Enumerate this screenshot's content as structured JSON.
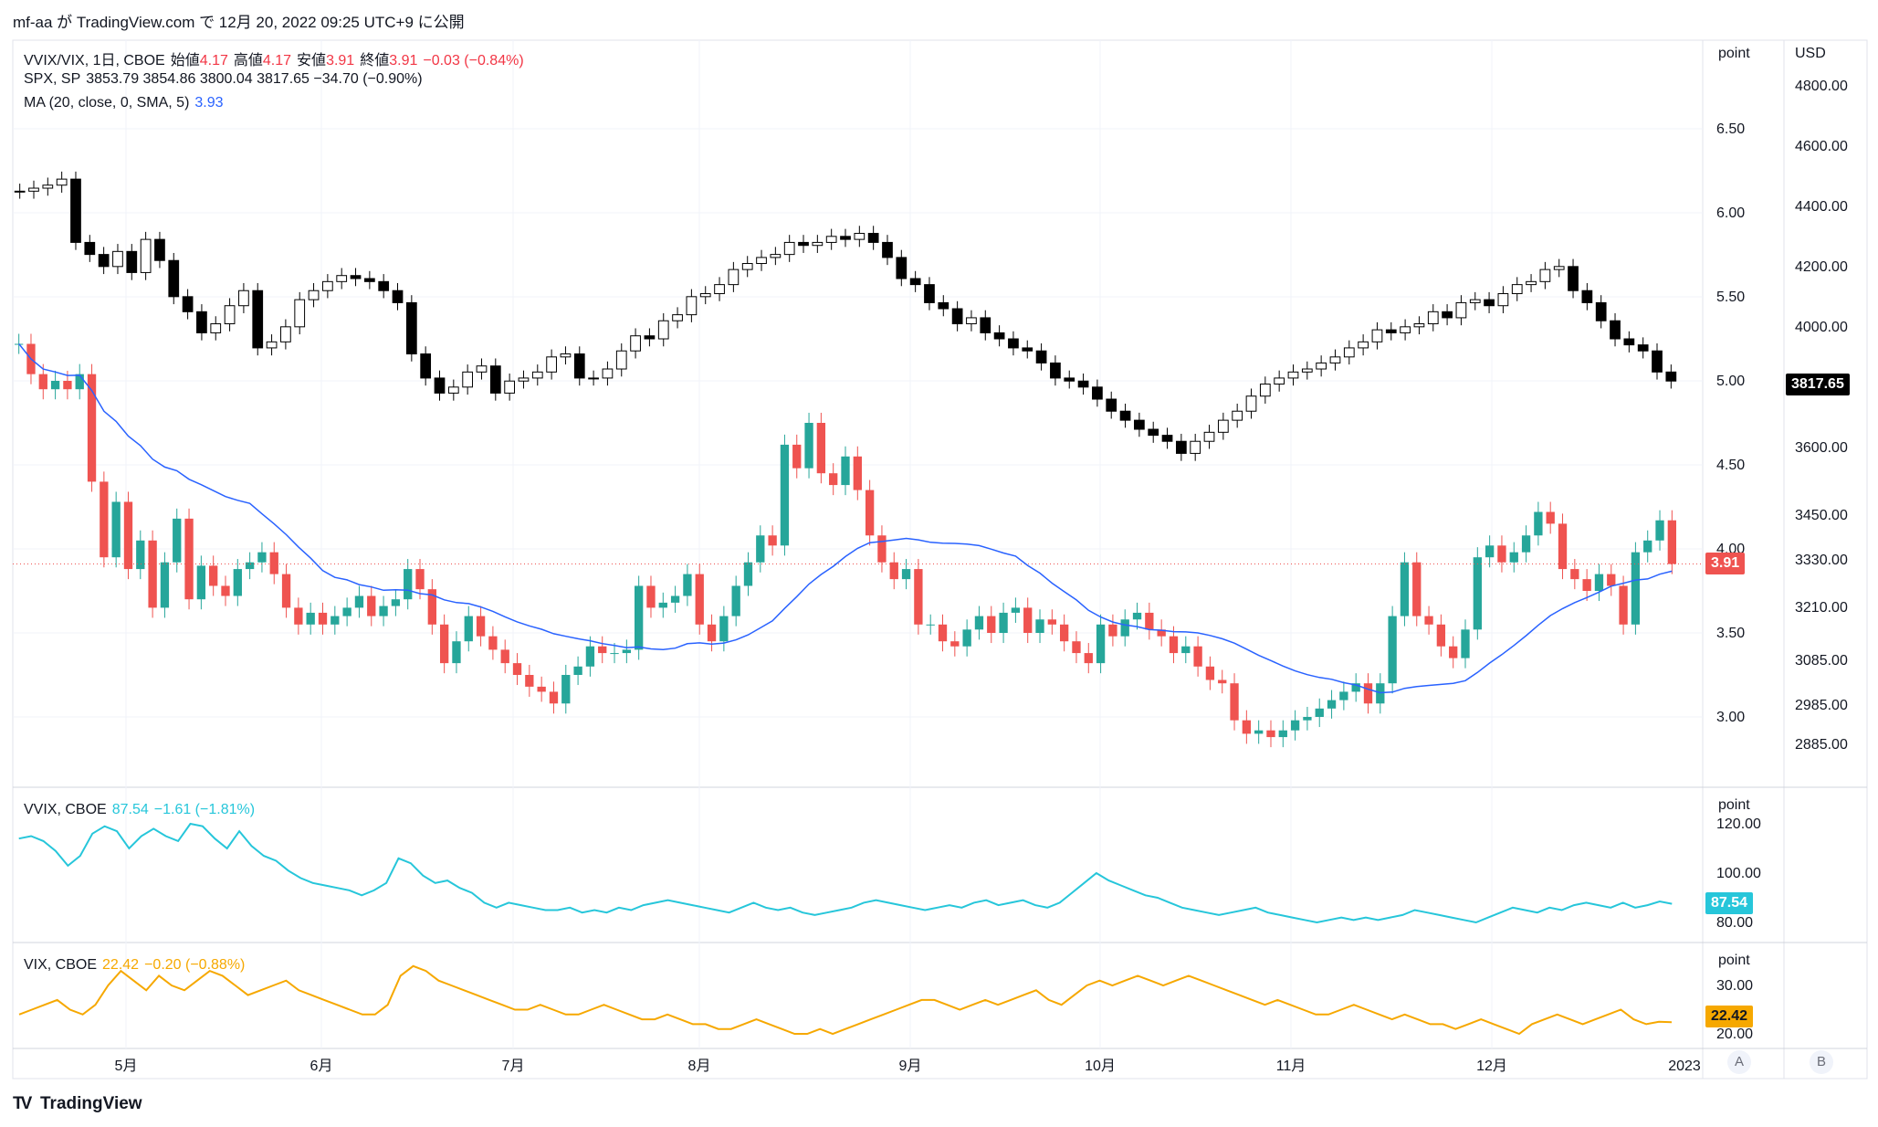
{
  "header": "mf-aa が TradingView.com で 12月 20, 2022 09:25 UTC+9 に公開",
  "footer_brand": "TradingView",
  "legend_main": {
    "symbol": "VVIX/VIX, 1日, CBOE",
    "open_label": "始値",
    "open": "4.17",
    "high_label": "高値",
    "high": "4.17",
    "low_label": "安値",
    "low": "3.91",
    "close_label": "終値",
    "close": "3.91",
    "change": "−0.03 (−0.84%)"
  },
  "legend_spx": {
    "symbol": "SPX, SP",
    "values": "3853.79  3854.86  3800.04  3817.65  −34.70 (−0.90%)"
  },
  "legend_ma": {
    "label": "MA (20, close, 0, SMA, 5)",
    "value": "3.93"
  },
  "legend_vvix": {
    "symbol": "VVIX, CBOE",
    "value": "87.54",
    "change": "−1.61 (−1.81%)"
  },
  "legend_vix": {
    "symbol": "VIX, CBOE",
    "value": "22.42",
    "change": "−0.20 (−0.88%)"
  },
  "axis_headers": {
    "point": "point",
    "usd": "USD"
  },
  "price_tags": {
    "ratio": "3.91",
    "spx": "3817.65",
    "vvix": "87.54",
    "vix": "22.42"
  },
  "axis_buttons": {
    "a": "A",
    "b": "B"
  },
  "colors": {
    "up": "#26a69a",
    "down": "#ef5350",
    "ma": "#2962ff",
    "vvix": "#26c6da",
    "vix": "#f6a800",
    "spx": "#000000"
  },
  "chart_data": [
    {
      "type": "candlestick",
      "name": "VVIX/VIX",
      "x_ticks": [
        "5月",
        "6月",
        "7月",
        "8月",
        "9月",
        "10月",
        "11月",
        "12月",
        "2023"
      ],
      "y_ticks": [
        "3.00",
        "3.50",
        "4.00",
        "4.50",
        "5.00",
        "5.50",
        "6.00",
        "6.50"
      ],
      "ylim": [
        2.8,
        6.8
      ],
      "close": [
        5.22,
        5.04,
        4.95,
        5.0,
        4.95,
        5.04,
        4.4,
        3.95,
        4.28,
        3.88,
        4.05,
        3.65,
        3.92,
        4.18,
        3.7,
        3.9,
        3.78,
        3.72,
        3.88,
        3.92,
        3.98,
        3.85,
        3.65,
        3.55,
        3.62,
        3.55,
        3.6,
        3.65,
        3.72,
        3.6,
        3.66,
        3.7,
        3.88,
        3.76,
        3.55,
        3.32,
        3.45,
        3.6,
        3.48,
        3.4,
        3.32,
        3.25,
        3.18,
        3.15,
        3.08,
        3.25,
        3.3,
        3.42,
        3.38,
        3.38,
        3.4,
        3.78,
        3.65,
        3.68,
        3.72,
        3.85,
        3.55,
        3.45,
        3.6,
        3.78,
        3.92,
        4.08,
        4.02,
        4.62,
        4.48,
        4.75,
        4.45,
        4.38,
        4.55,
        4.35,
        4.08,
        3.92,
        3.82,
        3.88,
        3.55,
        3.55,
        3.45,
        3.42,
        3.52,
        3.6,
        3.5,
        3.62,
        3.65,
        3.5,
        3.58,
        3.55,
        3.45,
        3.38,
        3.32,
        3.55,
        3.48,
        3.58,
        3.62,
        3.52,
        3.48,
        3.38,
        3.42,
        3.3,
        3.22,
        3.2,
        2.98,
        2.9,
        2.92,
        2.88,
        2.92,
        2.98,
        3.0,
        3.05,
        3.1,
        3.15,
        3.2,
        3.08,
        3.2,
        3.6,
        3.92,
        3.6,
        3.55,
        3.42,
        3.35,
        3.52,
        3.95,
        4.02,
        3.92,
        3.98,
        4.08,
        4.22,
        4.15,
        3.88,
        3.82,
        3.75,
        3.85,
        3.78,
        3.55,
        3.98,
        4.05,
        4.17,
        3.91
      ],
      "ma_period": 20
    },
    {
      "type": "candlestick",
      "name": "SPX",
      "y_ticks": [
        "2885.00",
        "2985.00",
        "3085.00",
        "3210.00",
        "3330.00",
        "3450.00",
        "3600.00",
        "4000.00",
        "4200.00",
        "4400.00",
        "4600.00",
        "4800.00"
      ],
      "close": [
        4450,
        4460,
        4470,
        4490,
        4280,
        4240,
        4200,
        4250,
        4180,
        4290,
        4220,
        4100,
        4050,
        3980,
        4010,
        4070,
        4120,
        3930,
        3950,
        4000,
        4090,
        4120,
        4150,
        4170,
        4160,
        4150,
        4120,
        4080,
        3910,
        3830,
        3780,
        3800,
        3850,
        3870,
        3780,
        3820,
        3830,
        3850,
        3900,
        3910,
        3830,
        3830,
        3860,
        3920,
        3970,
        3960,
        4020,
        4040,
        4100,
        4110,
        4140,
        4190,
        4210,
        4230,
        4240,
        4280,
        4270,
        4280,
        4300,
        4290,
        4310,
        4280,
        4230,
        4160,
        4140,
        4080,
        4060,
        4010,
        4030,
        3980,
        3960,
        3930,
        3920,
        3880,
        3830,
        3820,
        3800,
        3760,
        3720,
        3690,
        3660,
        3640,
        3620,
        3580,
        3620,
        3650,
        3690,
        3720,
        3770,
        3810,
        3830,
        3850,
        3860,
        3880,
        3900,
        3930,
        3950,
        3990,
        3980,
        4000,
        4010,
        4050,
        4030,
        4080,
        4090,
        4070,
        4110,
        4140,
        4150,
        4190,
        4200,
        4120,
        4080,
        4020,
        3960,
        3940,
        3920,
        3850,
        3820
      ],
      "last": 3817.65
    },
    {
      "type": "line",
      "name": "VVIX",
      "y_ticks": [
        "80.00",
        "100.00",
        "120.00"
      ],
      "values": [
        114,
        115,
        113,
        109,
        103,
        107,
        116,
        119,
        117,
        110,
        115,
        118,
        115,
        113,
        120,
        119,
        114,
        110,
        117,
        111,
        107,
        105,
        101,
        98,
        96,
        95,
        94,
        93,
        91,
        93,
        96,
        106,
        104,
        99,
        96,
        97,
        94,
        92,
        88,
        86,
        88,
        87,
        86,
        85,
        85,
        86,
        84,
        85,
        84,
        86,
        85,
        87,
        88,
        89,
        88,
        87,
        86,
        85,
        84,
        86,
        88,
        86,
        85,
        86,
        84,
        83,
        84,
        85,
        86,
        88,
        89,
        88,
        87,
        86,
        85,
        86,
        87,
        86,
        88,
        89,
        87,
        88,
        89,
        87,
        86,
        88,
        92,
        96,
        100,
        97,
        95,
        93,
        91,
        90,
        88,
        86,
        85,
        84,
        83,
        84,
        85,
        86,
        84,
        83,
        82,
        81,
        80,
        81,
        82,
        81,
        82,
        81,
        82,
        83,
        85,
        84,
        83,
        82,
        81,
        80,
        82,
        84,
        86,
        85,
        84,
        86,
        85,
        87,
        88,
        87,
        86,
        88,
        86,
        87,
        88.5,
        87.54
      ]
    },
    {
      "type": "line",
      "name": "VIX",
      "y_ticks": [
        "20.00",
        "30.00"
      ],
      "values": [
        24,
        25,
        26,
        27,
        25,
        24,
        26,
        30,
        33,
        31,
        29,
        32,
        30,
        29,
        31,
        33,
        32,
        30,
        28,
        29,
        30,
        31,
        29,
        28,
        27,
        26,
        25,
        24,
        24,
        26,
        32,
        34,
        33,
        31,
        30,
        29,
        28,
        27,
        26,
        25,
        25,
        26,
        25,
        24,
        24,
        25,
        26,
        25,
        24,
        23,
        23,
        24,
        23,
        22,
        22,
        21,
        21,
        22,
        23,
        22,
        21,
        20,
        20,
        21,
        20,
        21,
        22,
        23,
        24,
        25,
        26,
        27,
        27,
        26,
        25,
        26,
        27,
        26,
        27,
        28,
        29,
        27,
        26,
        28,
        30,
        31,
        30,
        31,
        32,
        31,
        30,
        31,
        32,
        31,
        30,
        29,
        28,
        27,
        26,
        27,
        26,
        25,
        24,
        24,
        25,
        26,
        25,
        24,
        23,
        24,
        23,
        22,
        22,
        21,
        22,
        23,
        22,
        21,
        20,
        22,
        23,
        24,
        23,
        22,
        23,
        24,
        25,
        23,
        22,
        22.5,
        22.42
      ]
    }
  ]
}
